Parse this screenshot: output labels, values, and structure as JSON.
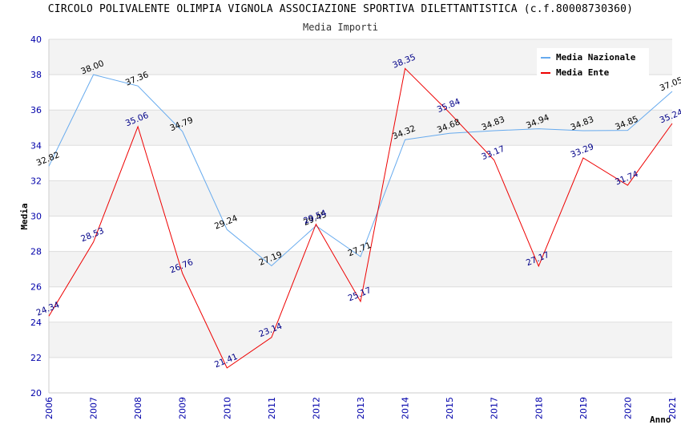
{
  "chart_data": {
    "type": "line",
    "title": "CIRCOLO POLIVALENTE OLIMPIA VIGNOLA ASSOCIAZIONE SPORTIVA DILETTANTISTICA (c.f.80008730360)",
    "subtitle": "Media Importi",
    "xlabel": "Anno",
    "ylabel": "Media",
    "ylim": [
      20,
      40
    ],
    "yticks": [
      "20",
      "22",
      "24",
      "26",
      "28",
      "30",
      "32",
      "34",
      "36",
      "38",
      "40"
    ],
    "categories": [
      "2006",
      "2007",
      "2008",
      "2009",
      "2010",
      "2011",
      "2012",
      "2013",
      "2014",
      "2015",
      "2017",
      "2018",
      "2019",
      "2020",
      "2021"
    ],
    "series": [
      {
        "name": "Media Nazionale",
        "color": "#66aaee",
        "label_color": "#000000",
        "values": [
          32.82,
          38.0,
          37.36,
          34.79,
          29.24,
          27.19,
          29.45,
          27.71,
          34.32,
          34.68,
          34.83,
          34.94,
          34.83,
          34.85,
          37.05
        ],
        "labels": [
          "32.82",
          "38.00",
          "37.36",
          "34.79",
          "29.24",
          "27.19",
          "29.45",
          "27.71",
          "34.32",
          "34.68",
          "34.83",
          "34.94",
          "34.83",
          "34.85",
          "37.05"
        ]
      },
      {
        "name": "Media Ente",
        "color": "#ee0000",
        "label_color": "#000088",
        "values": [
          24.34,
          28.53,
          35.06,
          26.76,
          21.41,
          23.14,
          29.54,
          25.17,
          38.35,
          35.84,
          33.17,
          27.17,
          33.29,
          31.74,
          35.24
        ],
        "labels": [
          "24.34",
          "28.53",
          "35.06",
          "26.76",
          "21.41",
          "23.14",
          "29.54",
          "25.17",
          "38.35",
          "35.84",
          "33.17",
          "27.17",
          "33.29",
          "31.74",
          "35.24"
        ]
      }
    ],
    "legend_position": "top-right",
    "grid": true
  }
}
